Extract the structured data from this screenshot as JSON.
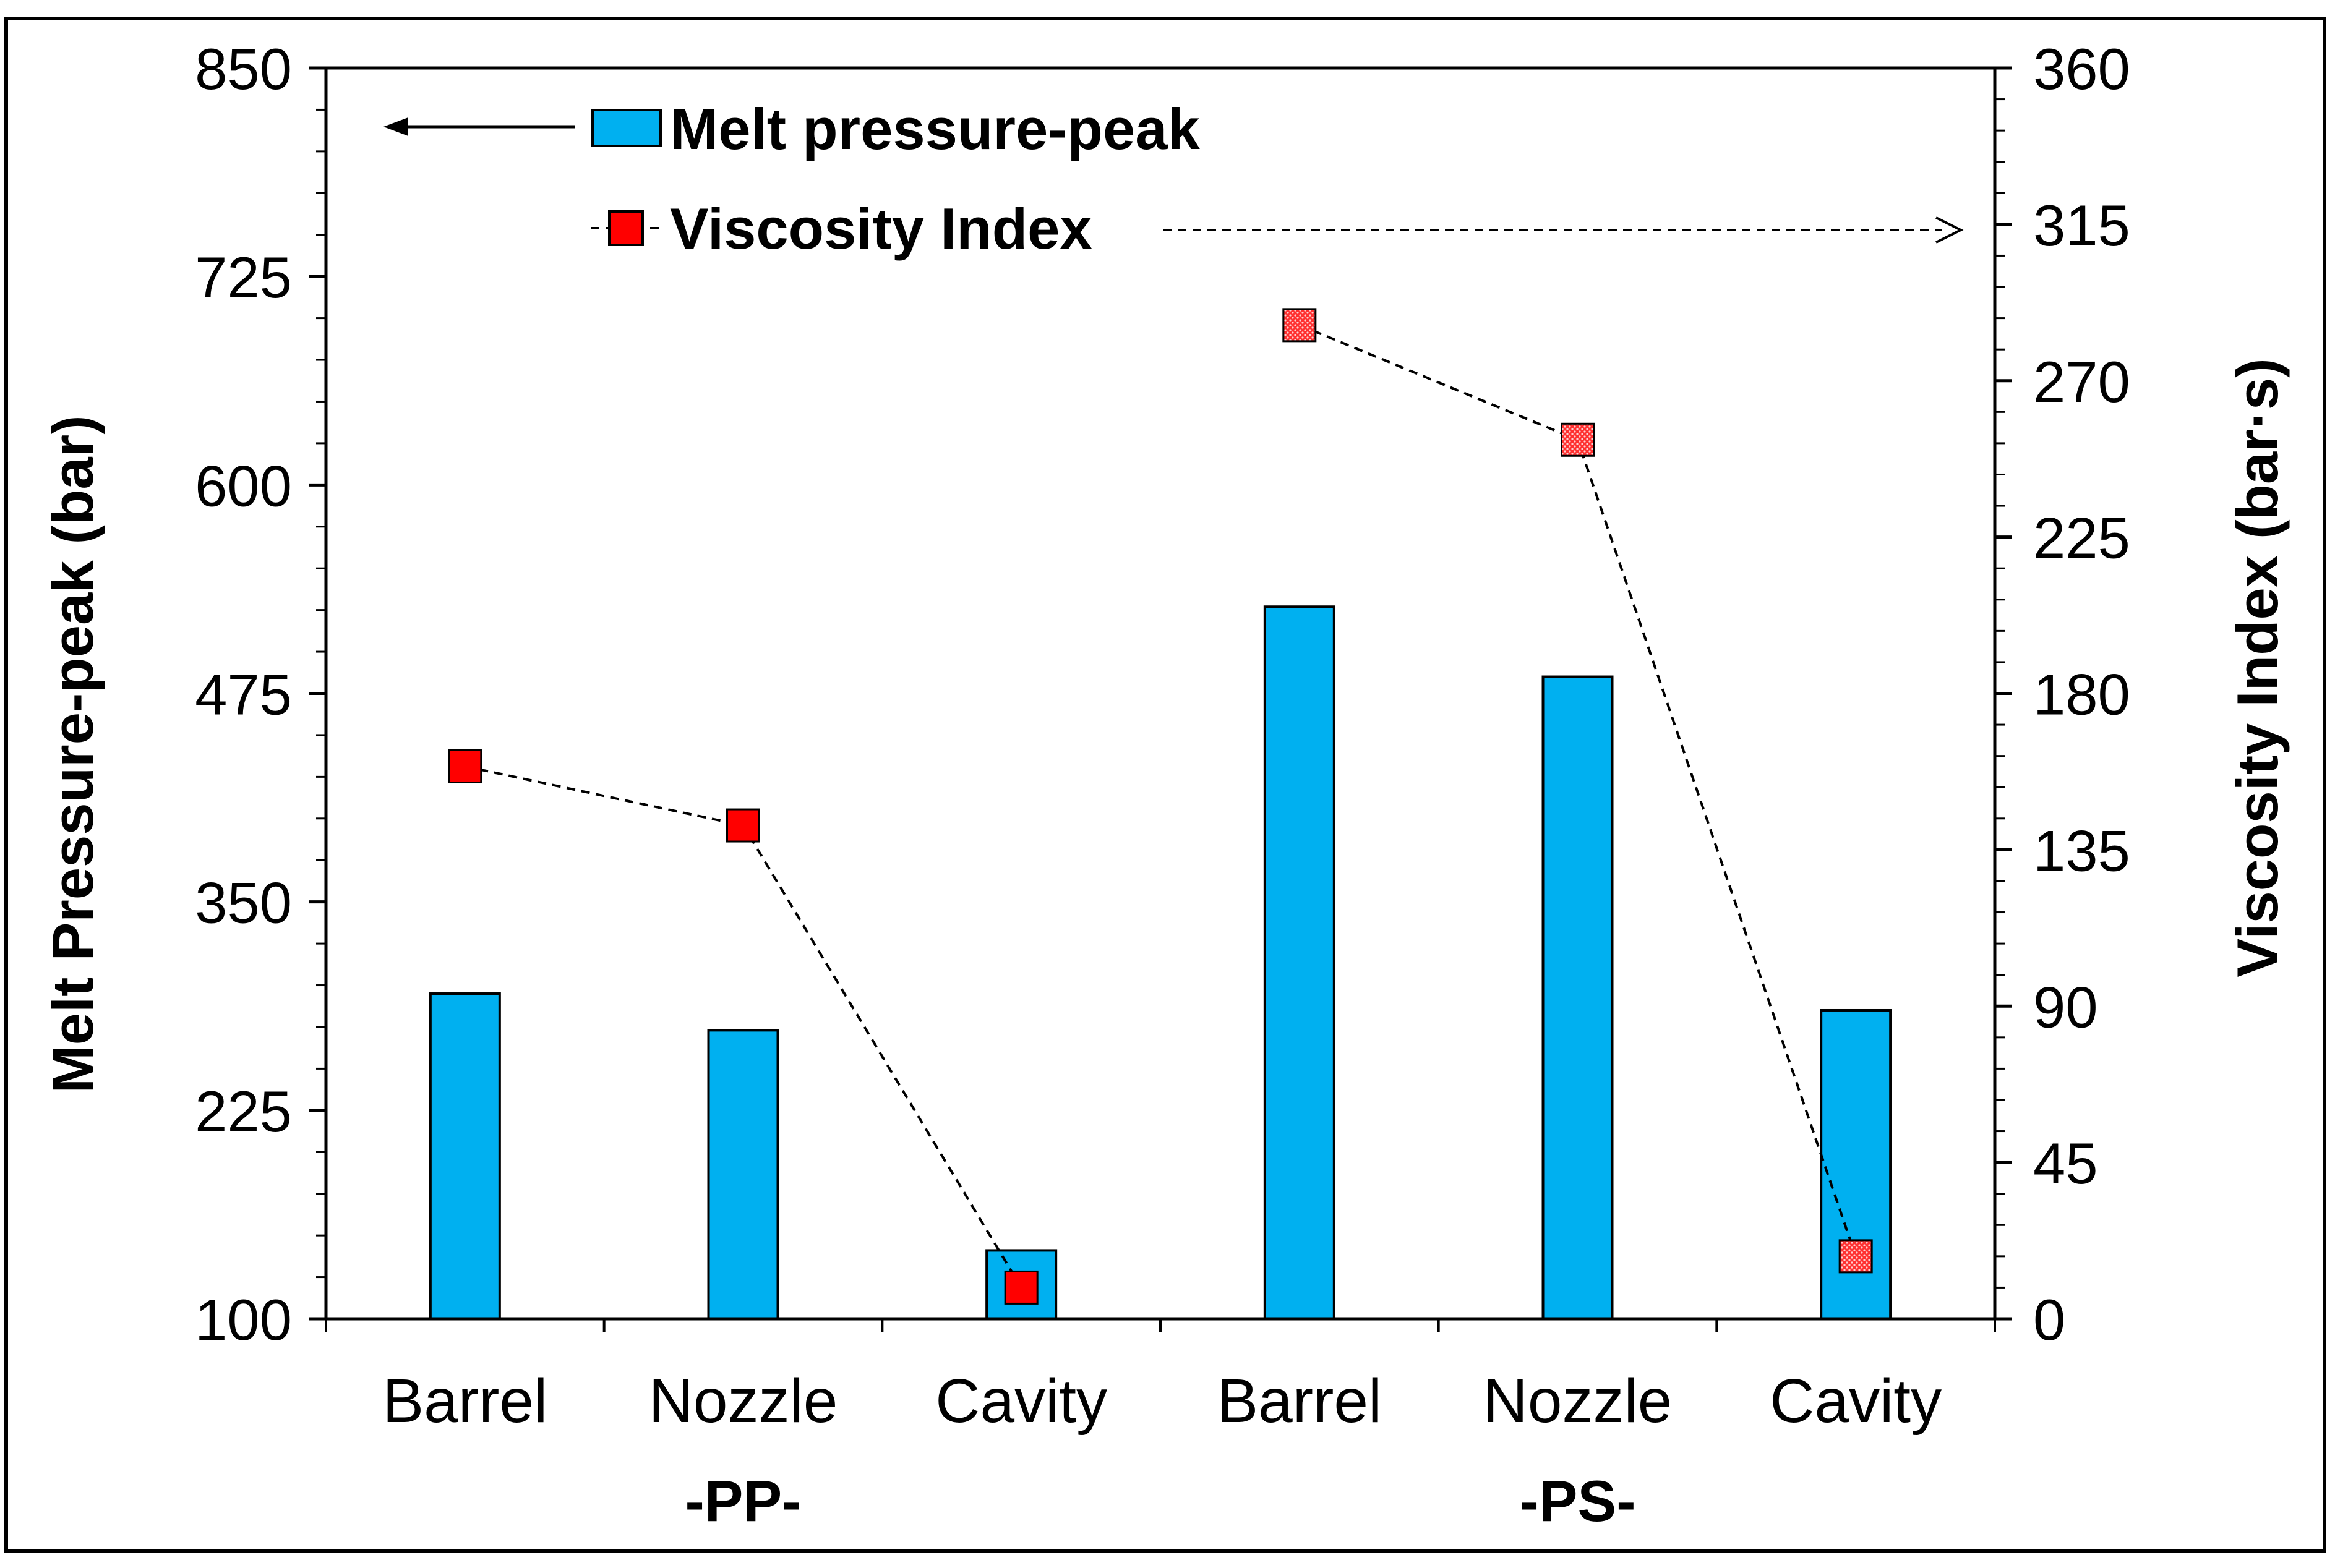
{
  "chart_data": {
    "type": "bar",
    "categories": [
      "Barrel",
      "Nozzle",
      "Cavity",
      "Barrel",
      "Nozzle",
      "Cavity"
    ],
    "groups": [
      {
        "label": "-PP-",
        "categories": [
          "Barrel",
          "Nozzle",
          "Cavity"
        ]
      },
      {
        "label": "-PS-",
        "categories": [
          "Barrel",
          "Nozzle",
          "Cavity"
        ]
      }
    ],
    "series": [
      {
        "name": "Melt pressure-peak",
        "type": "bar",
        "axis": "left",
        "values": [
          295,
          273,
          141,
          527,
          485,
          285
        ]
      },
      {
        "name": "Viscosity Index",
        "type": "line",
        "axis": "right",
        "values": [
          159,
          142,
          9,
          286,
          253,
          18
        ]
      }
    ],
    "left_axis": {
      "label": "Melt Pressure-peak (bar)",
      "ylim": [
        100,
        850
      ],
      "ticks": [
        "850",
        "725",
        "600",
        "475",
        "350",
        "225",
        "100"
      ],
      "tick_values": [
        850,
        725,
        600,
        475,
        350,
        225,
        100
      ]
    },
    "right_axis": {
      "label": "Viscosity Index (bar·s)",
      "ylim": [
        0,
        360
      ],
      "ticks": [
        "360",
        "315",
        "270",
        "225",
        "180",
        "135",
        "90",
        "45",
        "0"
      ],
      "tick_values": [
        360,
        315,
        270,
        225,
        180,
        135,
        90,
        45,
        0
      ]
    },
    "legend": {
      "position": "top-left",
      "items": [
        "Melt pressure-peak",
        "Viscosity Index"
      ]
    },
    "colors": {
      "bar_fill": "#00B0F0",
      "marker_fill": "#FF0000",
      "line": "#000000"
    },
    "grid": false
  }
}
